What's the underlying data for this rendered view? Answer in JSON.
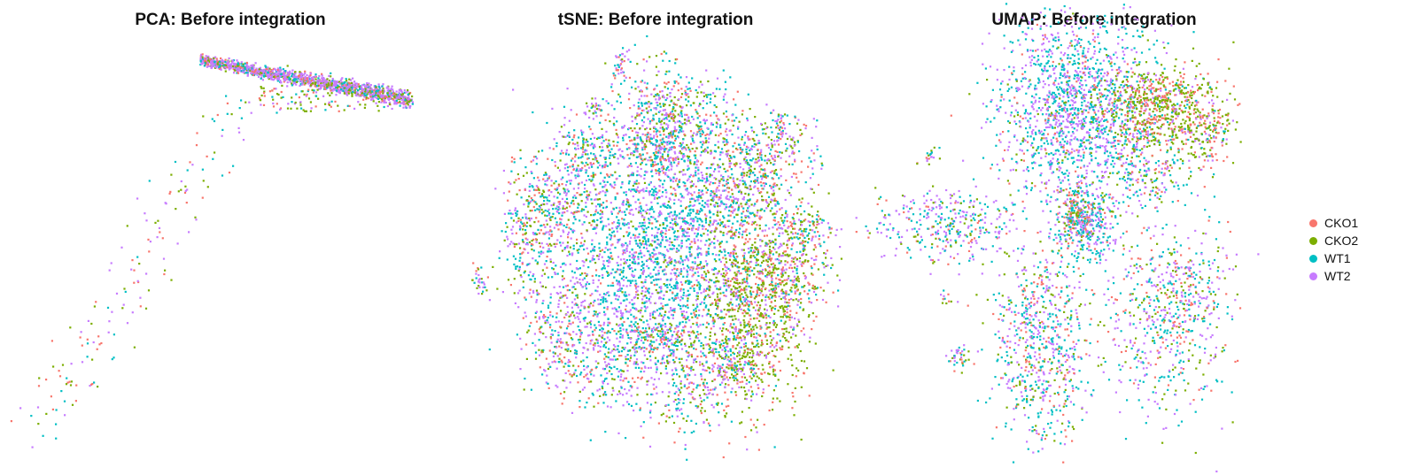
{
  "chart_data": [
    {
      "type": "scatter",
      "title": "PCA: Before integration",
      "xlabel": "",
      "ylabel": "",
      "groups": [
        "CKO1",
        "CKO2",
        "WT1",
        "WT2"
      ]
    },
    {
      "type": "scatter",
      "title": "tSNE: Before integration",
      "xlabel": "",
      "ylabel": "",
      "groups": [
        "CKO1",
        "CKO2",
        "WT1",
        "WT2"
      ]
    },
    {
      "type": "scatter",
      "title": "UMAP: Before integration",
      "xlabel": "",
      "ylabel": "",
      "groups": [
        "CKO1",
        "CKO2",
        "WT1",
        "WT2"
      ]
    }
  ],
  "legend": {
    "items": [
      {
        "label": "CKO1",
        "color": "#F8766D"
      },
      {
        "label": "CKO2",
        "color": "#7CAE00"
      },
      {
        "label": "WT1",
        "color": "#00BFC4"
      },
      {
        "label": "WT2",
        "color": "#C77CFF"
      }
    ]
  }
}
